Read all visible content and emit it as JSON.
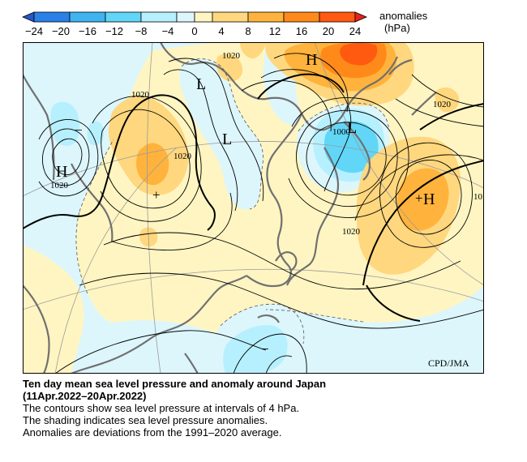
{
  "legend": {
    "title": "anomalies",
    "unit": "(hPa)",
    "ticks": [
      "−24",
      "−20",
      "−16",
      "−12",
      "−8",
      "−4",
      "0",
      "4",
      "8",
      "12",
      "16",
      "20",
      "24"
    ],
    "colors": {
      "lt_-20": "#2a55c9",
      "-20_-16": "#2a80e6",
      "-16_-12": "#3fb4f0",
      "-12_-8": "#62d6f6",
      "-8_-4": "#b6f0ff",
      "-4_0": "#dcf6fc",
      "0_4": "#fff5c2",
      "4_8": "#ffd77e",
      "8_12": "#ffb33c",
      "12_16": "#ff8a1a",
      "16_20": "#ff5a10",
      "gt_20": "#e8221a"
    }
  },
  "map": {
    "credit": "CPD/JMA",
    "isobar_labels": [
      "1020",
      "1020",
      "1020",
      "1020",
      "1020",
      "1000",
      "1020",
      "1020",
      "10"
    ],
    "pressure_centers": [
      "H",
      "L",
      "L",
      "L",
      "H",
      "H"
    ],
    "anomaly_signs": [
      "−",
      "+",
      "+",
      "−"
    ]
  },
  "caption": {
    "title_line1": "Ten day mean sea level pressure and anomaly around Japan",
    "title_line2": "(11Apr.2022–20Apr.2022)",
    "line1": "The contours show sea level pressure at intervals of 4 hPa.",
    "line2": "The shading indicates sea level pressure anomalies.",
    "line3": "Anomalies are deviations from the 1991–2020 average."
  }
}
